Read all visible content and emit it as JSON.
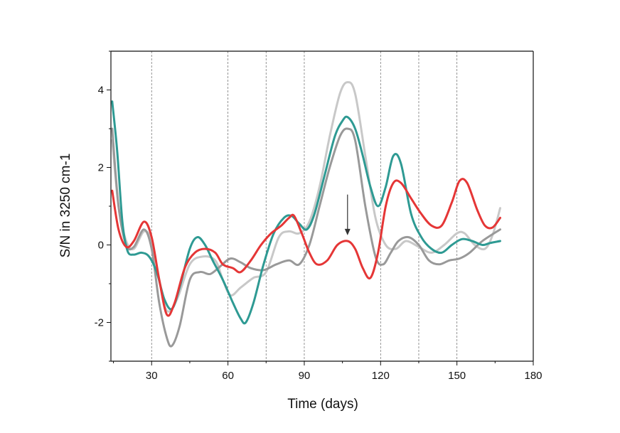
{
  "chart_data": {
    "type": "line",
    "title": "",
    "xlabel": "Time (days)",
    "ylabel": "S/N in 3250 cm-1",
    "xlim": [
      14,
      180
    ],
    "ylim": [
      -3,
      5
    ],
    "x_ticks": [
      30,
      60,
      90,
      120,
      150,
      180
    ],
    "x_tick_labels": [
      "30",
      "60",
      "90",
      "120",
      "150",
      "180"
    ],
    "y_ticks": [
      -2,
      0,
      2,
      4
    ],
    "y_tick_labels": [
      "-2",
      "0",
      "2",
      "4"
    ],
    "grid": {
      "vertical": [
        30,
        60,
        75,
        90,
        120,
        135,
        150
      ],
      "style": "dashed"
    },
    "legend": "none",
    "annotations": [
      {
        "type": "arrow",
        "x": 107,
        "y_from": 1.3,
        "y_to": 0.25,
        "color": "#333333"
      }
    ],
    "series": [
      {
        "color": "#c8c8c8",
        "points": [
          [
            14.5,
            2.7
          ],
          [
            17,
            1.0
          ],
          [
            20,
            0.1
          ],
          [
            23,
            -0.1
          ],
          [
            27,
            0.35
          ],
          [
            30,
            0.1
          ],
          [
            33,
            -0.9
          ],
          [
            36,
            -1.7
          ],
          [
            40,
            -1.4
          ],
          [
            45,
            -0.5
          ],
          [
            50,
            -0.3
          ],
          [
            55,
            -0.4
          ],
          [
            58,
            -0.9
          ],
          [
            61,
            -1.3
          ],
          [
            65,
            -1.1
          ],
          [
            70,
            -0.85
          ],
          [
            75,
            -0.7
          ],
          [
            80,
            0.2
          ],
          [
            84,
            0.35
          ],
          [
            88,
            0.3
          ],
          [
            92,
            0.6
          ],
          [
            96,
            1.5
          ],
          [
            100,
            2.8
          ],
          [
            104,
            3.9
          ],
          [
            107,
            4.2
          ],
          [
            110,
            3.9
          ],
          [
            114,
            2.3
          ],
          [
            118,
            0.7
          ],
          [
            122,
            0.0
          ],
          [
            126,
            -0.1
          ],
          [
            130,
            0.1
          ],
          [
            135,
            -0.05
          ],
          [
            140,
            -0.2
          ],
          [
            145,
            0.0
          ],
          [
            150,
            0.3
          ],
          [
            153,
            0.3
          ],
          [
            157,
            0.0
          ],
          [
            161,
            -0.1
          ],
          [
            164,
            0.25
          ],
          [
            167,
            0.95
          ]
        ]
      },
      {
        "color": "#999999",
        "points": [
          [
            14.5,
            3.0
          ],
          [
            17,
            1.0
          ],
          [
            20,
            0.0
          ],
          [
            23,
            -0.05
          ],
          [
            27,
            0.4
          ],
          [
            30,
            -0.1
          ],
          [
            33,
            -1.5
          ],
          [
            36,
            -2.4
          ],
          [
            38,
            -2.6
          ],
          [
            41,
            -2.1
          ],
          [
            45,
            -0.9
          ],
          [
            49,
            -0.7
          ],
          [
            53,
            -0.75
          ],
          [
            57,
            -0.55
          ],
          [
            61,
            -0.35
          ],
          [
            65,
            -0.45
          ],
          [
            69,
            -0.6
          ],
          [
            74,
            -0.65
          ],
          [
            79,
            -0.5
          ],
          [
            84,
            -0.4
          ],
          [
            88,
            -0.5
          ],
          [
            92,
            0.0
          ],
          [
            96,
            1.0
          ],
          [
            100,
            2.0
          ],
          [
            104,
            2.8
          ],
          [
            107,
            3.0
          ],
          [
            110,
            2.7
          ],
          [
            114,
            1.0
          ],
          [
            118,
            -0.3
          ],
          [
            121,
            -0.5
          ],
          [
            124,
            -0.2
          ],
          [
            127,
            0.1
          ],
          [
            131,
            0.2
          ],
          [
            135,
            0.0
          ],
          [
            139,
            -0.4
          ],
          [
            143,
            -0.5
          ],
          [
            147,
            -0.4
          ],
          [
            151,
            -0.35
          ],
          [
            155,
            -0.2
          ],
          [
            160,
            0.1
          ],
          [
            167,
            0.4
          ]
        ]
      },
      {
        "color": "#2e9a93",
        "points": [
          [
            14.5,
            3.7
          ],
          [
            16.5,
            2.4
          ],
          [
            18.5,
            0.6
          ],
          [
            20.5,
            -0.15
          ],
          [
            23,
            -0.25
          ],
          [
            26,
            -0.2
          ],
          [
            29,
            -0.3
          ],
          [
            32,
            -0.7
          ],
          [
            35,
            -1.4
          ],
          [
            38,
            -1.65
          ],
          [
            41,
            -1.1
          ],
          [
            45,
            -0.1
          ],
          [
            48,
            0.2
          ],
          [
            51,
            0.0
          ],
          [
            54,
            -0.4
          ],
          [
            58,
            -0.9
          ],
          [
            62,
            -1.5
          ],
          [
            65,
            -1.9
          ],
          [
            67,
            -2.0
          ],
          [
            70,
            -1.5
          ],
          [
            74,
            -0.5
          ],
          [
            78,
            0.3
          ],
          [
            82,
            0.7
          ],
          [
            85,
            0.75
          ],
          [
            88,
            0.55
          ],
          [
            91,
            0.4
          ],
          [
            94,
            0.8
          ],
          [
            98,
            1.8
          ],
          [
            102,
            2.8
          ],
          [
            105,
            3.2
          ],
          [
            107,
            3.3
          ],
          [
            110,
            3.0
          ],
          [
            113,
            2.3
          ],
          [
            116,
            1.5
          ],
          [
            119,
            1.0
          ],
          [
            122,
            1.5
          ],
          [
            125,
            2.3
          ],
          [
            128,
            2.1
          ],
          [
            132,
            0.8
          ],
          [
            136,
            0.2
          ],
          [
            140,
            -0.1
          ],
          [
            144,
            -0.2
          ],
          [
            148,
            0.0
          ],
          [
            152,
            0.15
          ],
          [
            156,
            0.1
          ],
          [
            160,
            0.0
          ],
          [
            163,
            0.05
          ],
          [
            167,
            0.1
          ]
        ]
      },
      {
        "color": "#e53636",
        "points": [
          [
            14.5,
            1.4
          ],
          [
            17,
            0.4
          ],
          [
            20,
            -0.05
          ],
          [
            23,
            0.1
          ],
          [
            27,
            0.6
          ],
          [
            30,
            0.2
          ],
          [
            33,
            -0.9
          ],
          [
            36,
            -1.8
          ],
          [
            39,
            -1.5
          ],
          [
            43,
            -0.6
          ],
          [
            47,
            -0.2
          ],
          [
            51,
            -0.1
          ],
          [
            55,
            -0.2
          ],
          [
            58,
            -0.5
          ],
          [
            62,
            -0.6
          ],
          [
            65,
            -0.7
          ],
          [
            69,
            -0.4
          ],
          [
            73,
            0.0
          ],
          [
            77,
            0.3
          ],
          [
            81,
            0.5
          ],
          [
            84,
            0.7
          ],
          [
            86,
            0.75
          ],
          [
            89,
            0.3
          ],
          [
            92,
            -0.2
          ],
          [
            95,
            -0.5
          ],
          [
            99,
            -0.4
          ],
          [
            103,
            0.0
          ],
          [
            107,
            0.1
          ],
          [
            110,
            -0.1
          ],
          [
            113,
            -0.6
          ],
          [
            116,
            -0.85
          ],
          [
            119,
            -0.2
          ],
          [
            122,
            1.0
          ],
          [
            125,
            1.6
          ],
          [
            128,
            1.6
          ],
          [
            132,
            1.2
          ],
          [
            136,
            0.8
          ],
          [
            140,
            0.5
          ],
          [
            144,
            0.5
          ],
          [
            148,
            1.1
          ],
          [
            151,
            1.65
          ],
          [
            154,
            1.6
          ],
          [
            158,
            0.9
          ],
          [
            161,
            0.5
          ],
          [
            164,
            0.45
          ],
          [
            167,
            0.7
          ]
        ]
      }
    ]
  }
}
